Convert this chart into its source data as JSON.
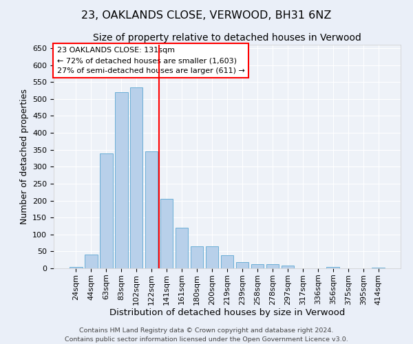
{
  "title": "23, OAKLANDS CLOSE, VERWOOD, BH31 6NZ",
  "subtitle": "Size of property relative to detached houses in Verwood",
  "xlabel": "Distribution of detached houses by size in Verwood",
  "ylabel": "Number of detached properties",
  "categories": [
    "24sqm",
    "44sqm",
    "63sqm",
    "83sqm",
    "102sqm",
    "122sqm",
    "141sqm",
    "161sqm",
    "180sqm",
    "200sqm",
    "219sqm",
    "239sqm",
    "258sqm",
    "278sqm",
    "297sqm",
    "317sqm",
    "336sqm",
    "356sqm",
    "375sqm",
    "395sqm",
    "414sqm"
  ],
  "values": [
    5,
    40,
    340,
    520,
    535,
    345,
    205,
    120,
    65,
    65,
    38,
    18,
    13,
    13,
    8,
    0,
    0,
    5,
    0,
    0,
    3
  ],
  "bar_color": "#b8d0ea",
  "bar_edge_color": "#6aaed6",
  "vline_index": 5.5,
  "vline_color": "red",
  "annotation_text": "23 OAKLANDS CLOSE: 131sqm\n← 72% of detached houses are smaller (1,603)\n27% of semi-detached houses are larger (611) →",
  "annotation_box_color": "white",
  "annotation_box_edge_color": "red",
  "ylim": [
    0,
    660
  ],
  "yticks": [
    0,
    50,
    100,
    150,
    200,
    250,
    300,
    350,
    400,
    450,
    500,
    550,
    600,
    650
  ],
  "footer_line1": "Contains HM Land Registry data © Crown copyright and database right 2024.",
  "footer_line2": "Contains public sector information licensed under the Open Government Licence v3.0.",
  "bg_color": "#eaeff8",
  "plot_bg_color": "#eef2f8",
  "title_fontsize": 11.5,
  "subtitle_fontsize": 10,
  "xlabel_fontsize": 9.5,
  "ylabel_fontsize": 9,
  "tick_fontsize": 8,
  "annotation_fontsize": 8,
  "footer_fontsize": 6.8
}
